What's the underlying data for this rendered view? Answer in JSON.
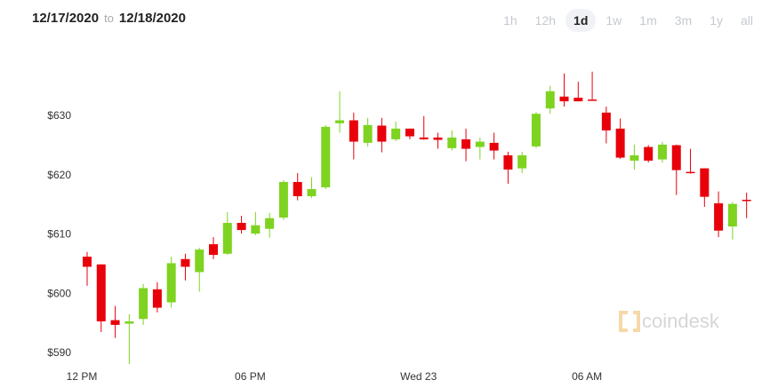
{
  "header": {
    "date_from": "12/17/2020",
    "to": "to",
    "date_to": "12/18/2020",
    "ranges": [
      "1h",
      "12h",
      "1d",
      "1w",
      "1m",
      "3m",
      "1y",
      "all"
    ],
    "active_range": 2
  },
  "chart_data": {
    "type": "candlestick",
    "watermark": "coindesk",
    "categories": [
      "12 PM",
      null,
      null,
      null,
      null,
      null,
      null,
      null,
      null,
      null,
      null,
      null,
      "06 PM",
      null,
      null,
      null,
      null,
      null,
      null,
      null,
      null,
      null,
      null,
      null,
      "Wed 23",
      null,
      null,
      null,
      null,
      null,
      null,
      null,
      null,
      null,
      null,
      null,
      "06 AM",
      null,
      null,
      null,
      null,
      null,
      null,
      null,
      null,
      null,
      null,
      null
    ],
    "open": [
      606.3,
      605.0,
      595.6,
      595.0,
      595.8,
      600.8,
      598.6,
      605.9,
      603.7,
      608.4,
      606.8,
      612.0,
      610.2,
      611.0,
      612.9,
      618.9,
      616.5,
      618.0,
      628.8,
      629.3,
      625.5,
      628.4,
      626.1,
      627.9,
      626.4,
      626.4,
      624.6,
      626.1,
      624.8,
      625.5,
      623.4,
      621.2,
      624.9,
      631.3,
      633.3,
      633.1,
      632.8,
      630.6,
      627.9,
      622.5,
      624.8,
      622.7,
      625.1,
      620.6,
      621.2,
      615.3,
      611.4,
      615.9
    ],
    "high": [
      607.1,
      605.0,
      598.0,
      596.6,
      601.7,
      602.0,
      606.3,
      606.8,
      607.8,
      609.6,
      613.8,
      613.2,
      613.8,
      613.7,
      619.2,
      620.4,
      619.7,
      628.5,
      634.2,
      630.6,
      629.7,
      629.7,
      629.1,
      627.9,
      630.0,
      627.2,
      627.6,
      627.9,
      626.4,
      627.2,
      624.0,
      624.0,
      630.7,
      635.1,
      637.2,
      635.8,
      637.5,
      631.6,
      629.6,
      625.2,
      625.1,
      625.7,
      625.2,
      624.5,
      621.2,
      617.3,
      615.5,
      617.1
    ],
    "low": [
      601.4,
      593.6,
      592.6,
      588.2,
      594.8,
      596.9,
      597.7,
      602.3,
      600.4,
      605.9,
      606.6,
      610.2,
      609.9,
      609.5,
      612.5,
      615.8,
      616.2,
      617.7,
      627.2,
      622.7,
      624.9,
      623.9,
      625.8,
      626.1,
      626.0,
      624.5,
      624.2,
      622.4,
      622.7,
      622.7,
      618.6,
      620.4,
      624.6,
      630.4,
      631.6,
      632.5,
      632.7,
      625.4,
      622.8,
      621.0,
      622.2,
      622.2,
      616.7,
      620.3,
      614.7,
      609.6,
      609.2,
      612.8
    ],
    "close": [
      604.6,
      595.4,
      594.8,
      595.4,
      601.0,
      597.7,
      605.2,
      604.6,
      607.5,
      606.6,
      612.0,
      610.8,
      611.6,
      612.8,
      618.9,
      616.5,
      617.7,
      628.2,
      629.3,
      625.7,
      628.5,
      625.7,
      627.9,
      626.6,
      626.1,
      626.0,
      626.4,
      624.5,
      625.7,
      624.2,
      621.0,
      623.4,
      630.4,
      634.2,
      632.5,
      632.5,
      632.7,
      627.6,
      623.0,
      623.4,
      622.5,
      625.2,
      620.9,
      620.4,
      616.4,
      610.7,
      615.2,
      615.8
    ],
    "up_color": "#7ed321",
    "down_color": "#e8000b",
    "ylim": [
      588.2,
      642.1
    ],
    "yticks": [
      {
        "value": 590,
        "label": "$590"
      },
      {
        "value": 600,
        "label": "$600"
      },
      {
        "value": 610,
        "label": "$610"
      },
      {
        "value": 620,
        "label": "$620"
      },
      {
        "value": 630,
        "label": "$630"
      }
    ],
    "grid": false
  }
}
